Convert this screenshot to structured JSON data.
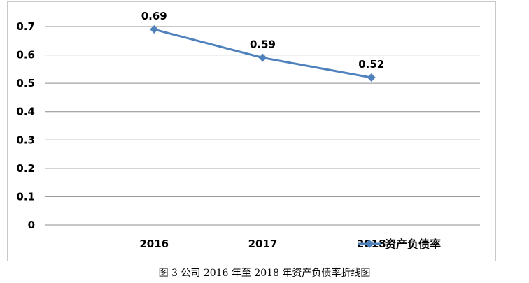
{
  "caption": "图 3 公司 2016 年至 2018 年资产负债率折线图",
  "chart_data": {
    "type": "line",
    "categories": [
      "2016",
      "2017",
      "2018"
    ],
    "series": [
      {
        "name": "资产负债率",
        "values": [
          0.69,
          0.59,
          0.52
        ],
        "color": "#4f81bd",
        "marker": "diamond"
      }
    ],
    "data_labels": [
      "0.69",
      "0.59",
      "0.52"
    ],
    "y_ticks": [
      "0",
      "0.1",
      "0.2",
      "0.3",
      "0.4",
      "0.5",
      "0.6",
      "0.7"
    ],
    "ylim": [
      0,
      0.7
    ],
    "grid": true,
    "legend_position": "bottom-right",
    "title": "",
    "xlabel": "",
    "ylabel": ""
  }
}
